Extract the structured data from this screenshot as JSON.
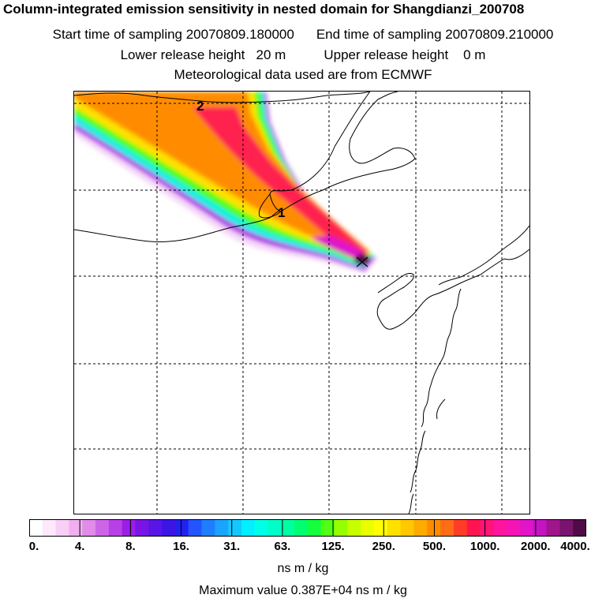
{
  "header": {
    "title": "Column-integrated emission sensitivity in nested domain for Shangdianzi_200708",
    "start_label": "Start time of sampling 20070809.180000",
    "end_label": "End time of sampling 20070809.210000",
    "lower_label": "Lower release height   20 m",
    "upper_label": "Upper release height    0 m",
    "met_label": "Meteorological data used are from ECMWF"
  },
  "map": {
    "markers": [
      {
        "label": "1"
      },
      {
        "label": "2"
      }
    ],
    "receptor": "Shangdianzi"
  },
  "colorbar": {
    "ticks": [
      "0.",
      "4.",
      "8.",
      "16.",
      "31.",
      "63.",
      "125.",
      "250.",
      "500.",
      "1000.",
      "2000.",
      "4000."
    ],
    "colors": [
      "#ffffff",
      "#fde8fc",
      "#f8cff6",
      "#efaff0",
      "#e08ce8",
      "#cc66e6",
      "#b740e6",
      "#9a1ee6",
      "#7a14e6",
      "#5a14e6",
      "#3c14e6",
      "#2222ee",
      "#2255ff",
      "#1f7dff",
      "#1aa3ff",
      "#14c8ff",
      "#00f0ff",
      "#00ffe6",
      "#00ffc8",
      "#00ffa0",
      "#00ff6e",
      "#14ff3c",
      "#50ff14",
      "#96ff00",
      "#c8ff00",
      "#eaff00",
      "#ffff00",
      "#ffe100",
      "#ffc800",
      "#ffaa00",
      "#ff8c00",
      "#ff6e14",
      "#ff3c28",
      "#ff1450",
      "#ff1478",
      "#ff14a0",
      "#f514b4",
      "#e114c8",
      "#c314c3",
      "#a0148c",
      "#78146e",
      "#500a46"
    ],
    "units": "ns m / kg"
  },
  "footer": {
    "max_label": "Maximum value  0.387E+04 ns m / kg"
  }
}
